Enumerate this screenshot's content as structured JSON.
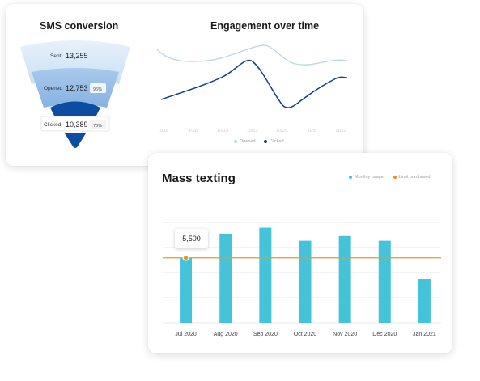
{
  "sms_conversion": {
    "title": "SMS conversion",
    "stages": [
      {
        "label": "Sent",
        "value": "13,255",
        "pct": ""
      },
      {
        "label": "Opened",
        "value": "12,753",
        "pct": "96%"
      },
      {
        "label": "Clicked",
        "value": "10,389",
        "pct": "78%"
      }
    ]
  },
  "engagement": {
    "title": "Engagement over time",
    "x_labels": [
      "10/1",
      "10/8",
      "10/15",
      "10/22",
      "10/29",
      "11/5",
      "11/12"
    ],
    "legend": [
      {
        "name": "Opened",
        "color": "#b8dce2"
      },
      {
        "name": "Clicked",
        "color": "#0d3d8c"
      }
    ]
  },
  "mass_texting": {
    "title": "Mass texting",
    "legend": [
      {
        "name": "Monthly usage",
        "color": "#45c3d8"
      },
      {
        "name": "Limit purchased",
        "color": "#f08a24"
      }
    ],
    "tooltip_value": "5,500"
  },
  "chart_data": {
    "type": "bar",
    "categories": [
      "Jul 2020",
      "Aug 2020",
      "Sep 2020",
      "Oct 2020",
      "Nov 2020",
      "Dec 2020",
      "Jan 2021"
    ],
    "series": [
      {
        "name": "Monthly usage",
        "values": [
          5500,
          7550,
          8050,
          6950,
          7350,
          6950,
          3700
        ]
      }
    ],
    "limit_purchased": 5500,
    "ylim": [
      0,
      8500
    ],
    "grid": true,
    "legend_position": "top-right",
    "colors": {
      "bar": "#45c3d8",
      "limit": "#e8981f"
    }
  }
}
